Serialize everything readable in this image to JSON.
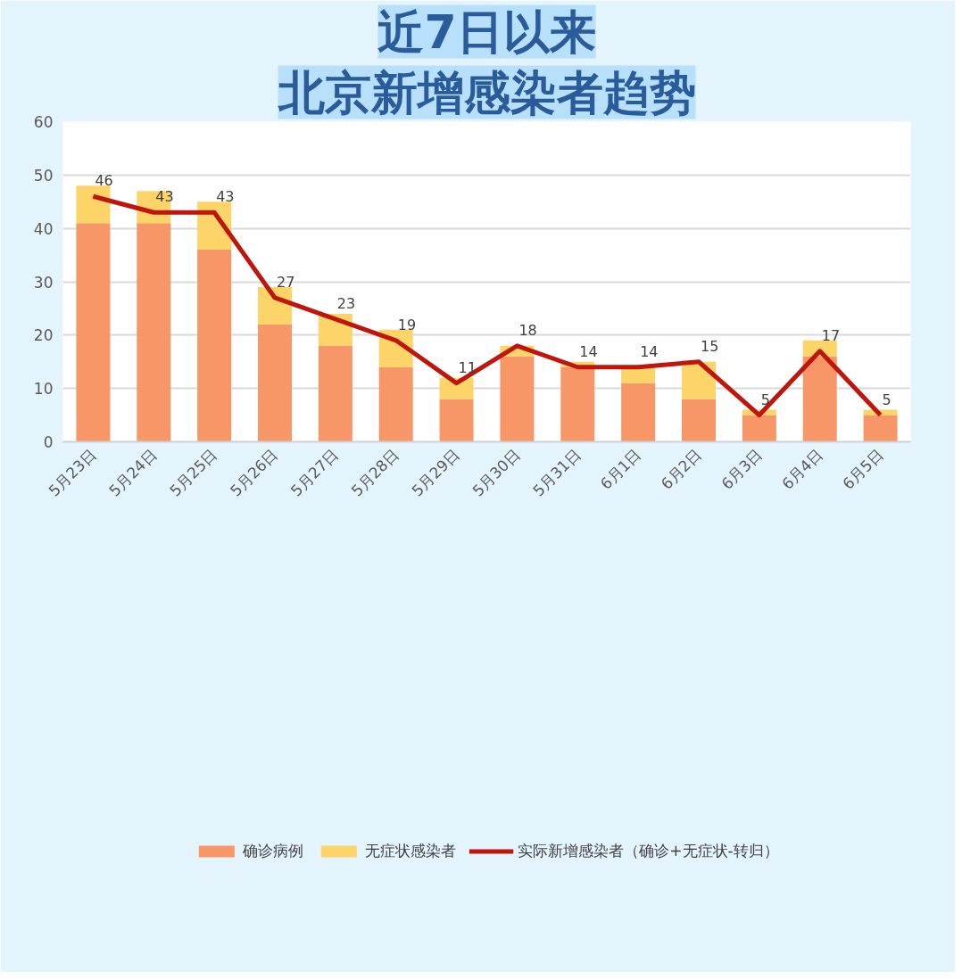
{
  "chart_data": {
    "type": "bar",
    "title": "近7日以来",
    "subtitle": "北京新增感染者趋势",
    "categories": [
      "5月23日",
      "5月24日",
      "5月25日",
      "5月26日",
      "5月27日",
      "5月28日",
      "5月29日",
      "5月30日",
      "5月31日",
      "6月1日",
      "6月2日",
      "6月3日",
      "6月4日",
      "6月5日"
    ],
    "stacked": true,
    "series": [
      {
        "name": "确诊病例",
        "color": "#f79767",
        "values": [
          41,
          41,
          36,
          22,
          18,
          14,
          8,
          16,
          14,
          11,
          8,
          5,
          16,
          5
        ]
      },
      {
        "name": "无症状感染者",
        "color": "#fdd468",
        "values": [
          7,
          6,
          9,
          7,
          6,
          7,
          4,
          2,
          1,
          3,
          7,
          1,
          3,
          1
        ]
      },
      {
        "name": "实际新增感染者（确诊+无症状-转归）",
        "type": "line",
        "color": "#c0150c",
        "line_style": "solid",
        "data_labels": true,
        "values": [
          46,
          43,
          43,
          27,
          23,
          19,
          11,
          18,
          14,
          14,
          15,
          5,
          17,
          5
        ]
      }
    ],
    "ylim": [
      0,
      60
    ],
    "yticks": [
      0,
      10,
      20,
      30,
      40,
      50,
      60
    ],
    "grid": "y",
    "legend": "bottom"
  }
}
